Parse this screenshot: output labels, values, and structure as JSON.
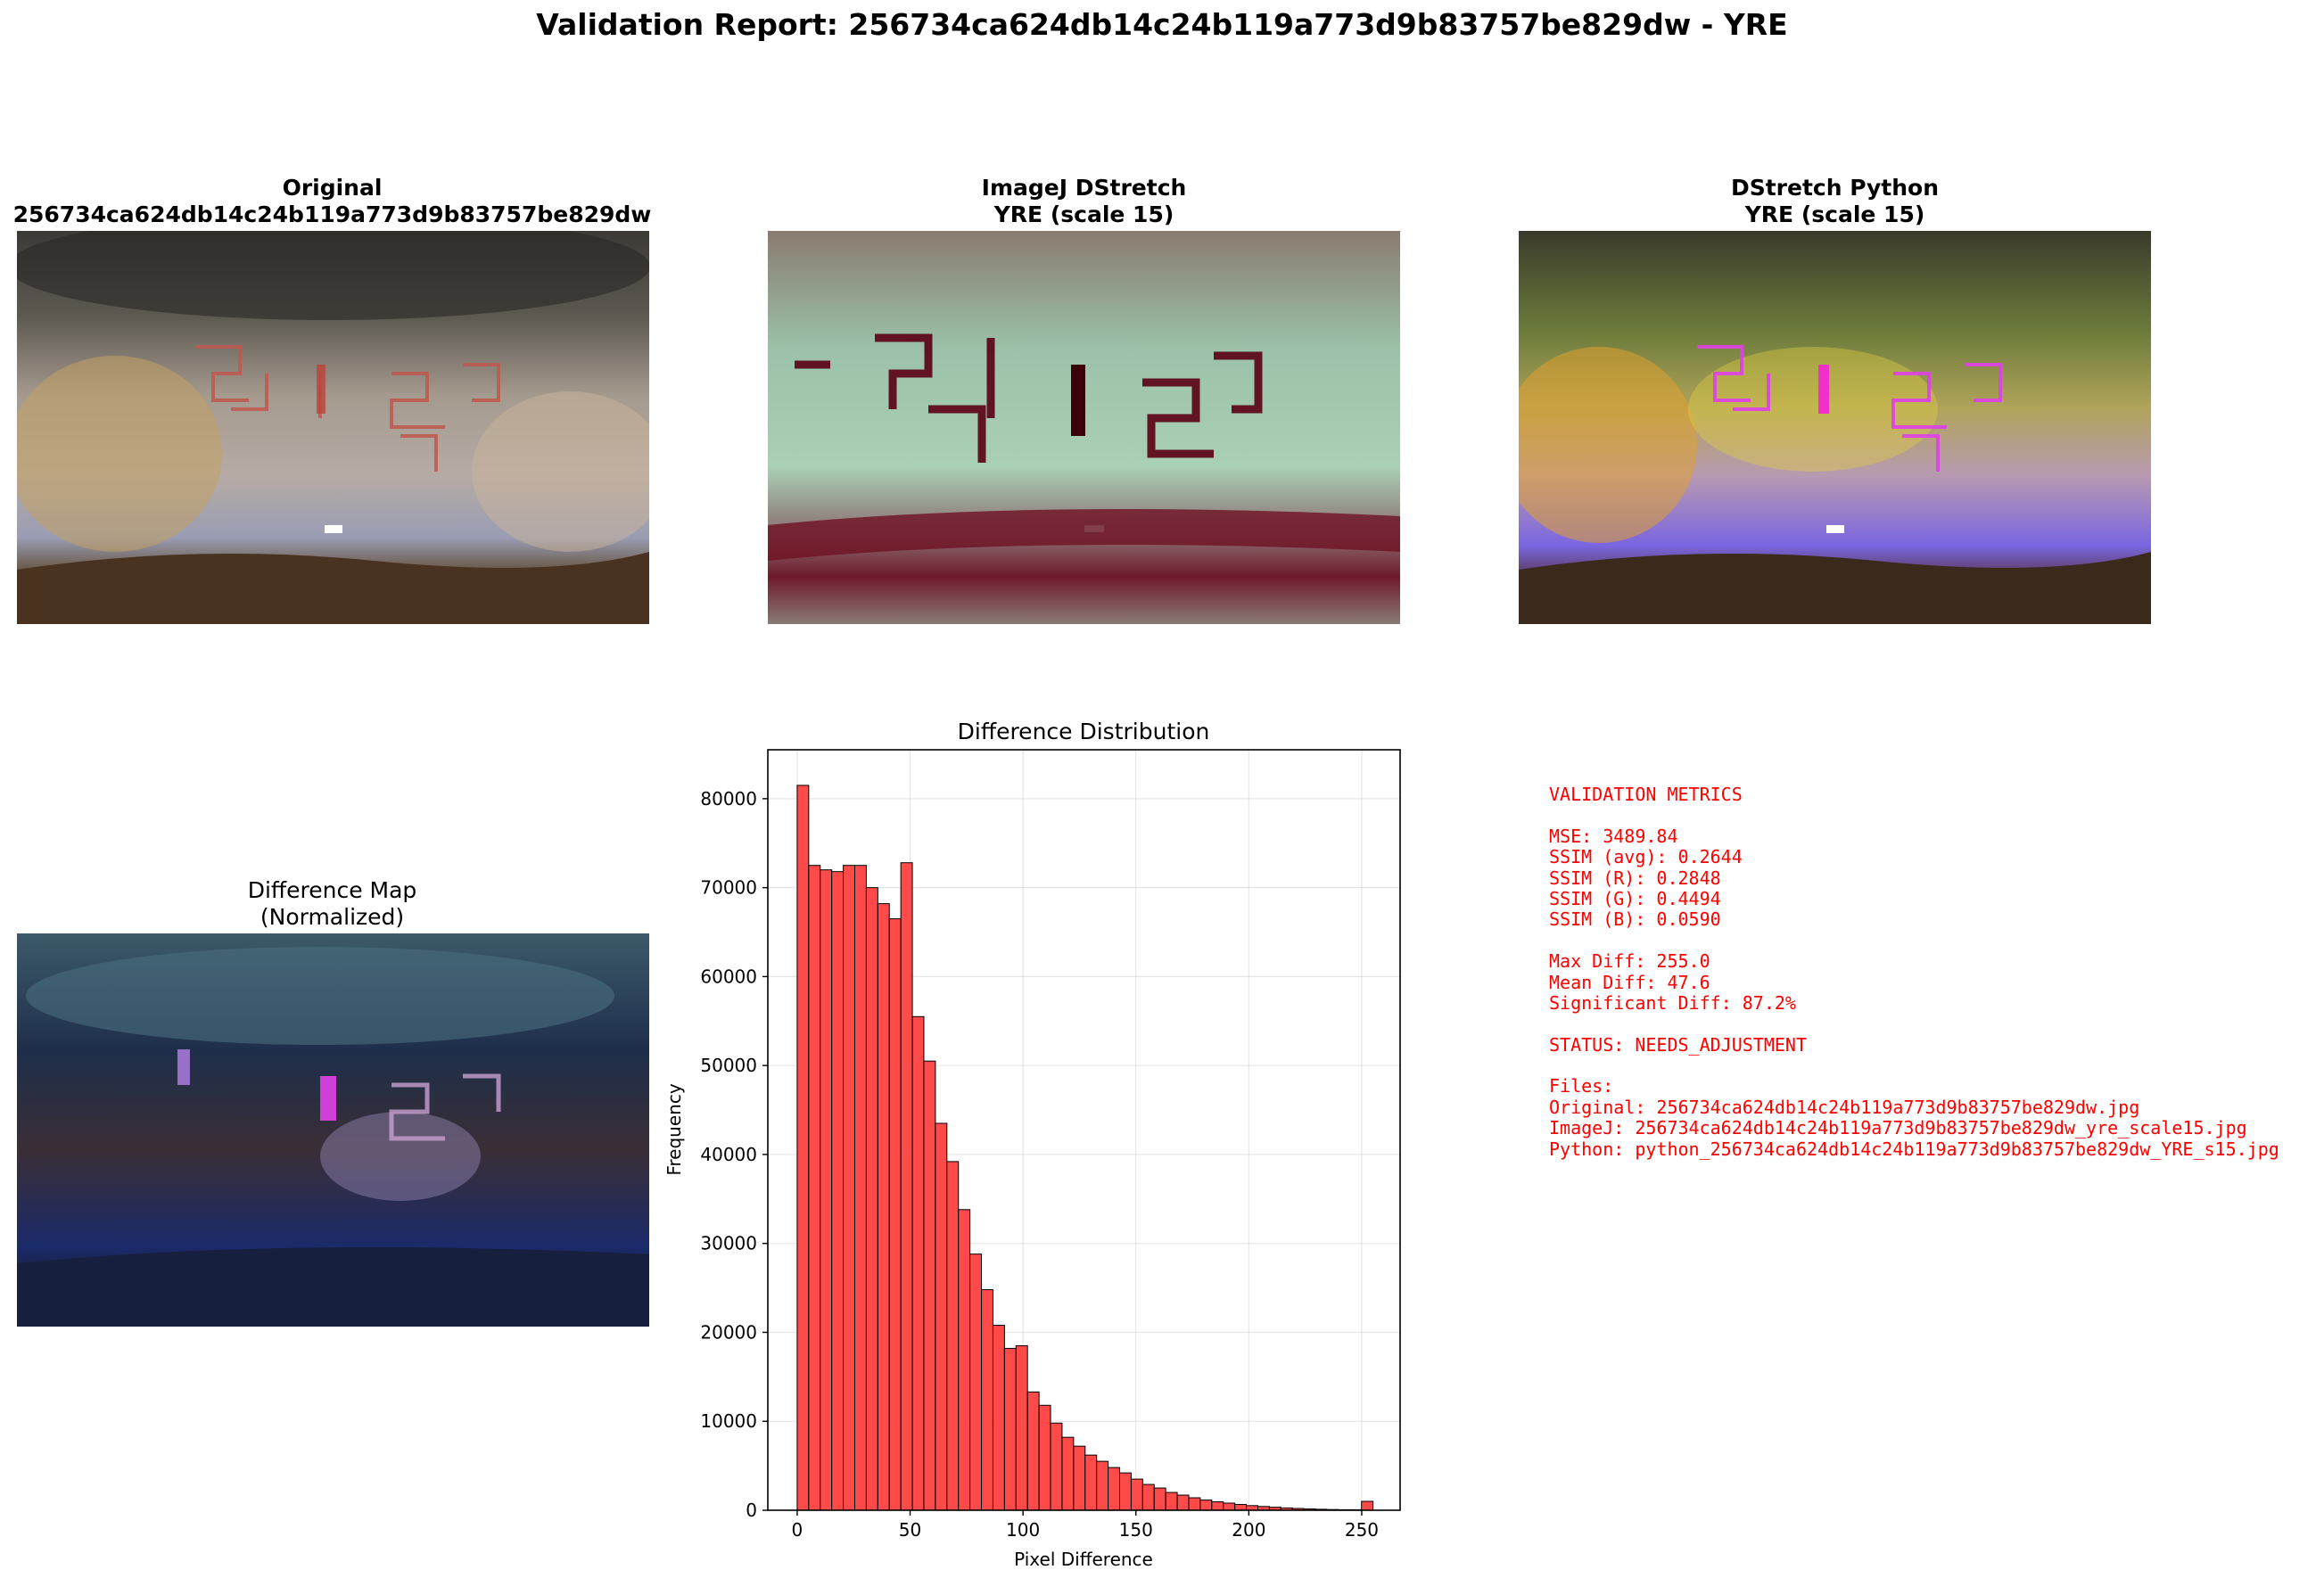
{
  "report": {
    "title": "Validation Report: 256734ca624db14c24b119a773d9b83757be829dw - YRE"
  },
  "panels": {
    "original": {
      "title_line1": "Original",
      "title_line2": "256734ca624db14c24b119a773d9b83757be829dw"
    },
    "imagej": {
      "title_line1": "ImageJ DStretch",
      "title_line2": "YRE (scale 15)"
    },
    "python": {
      "title_line1": "DStretch Python",
      "title_line2": "YRE (scale 15)"
    },
    "diffmap": {
      "title_line1": "Difference Map",
      "title_line2": "(Normalized)"
    }
  },
  "metrics": {
    "lines": [
      "VALIDATION METRICS",
      "",
      "MSE: 3489.84",
      "SSIM (avg): 0.2644",
      "SSIM (R): 0.2848",
      "SSIM (G): 0.4494",
      "SSIM (B): 0.0590",
      "",
      "Max Diff: 255.0",
      "Mean Diff: 47.6",
      "Significant Diff: 87.2%",
      "",
      "STATUS: NEEDS_ADJUSTMENT",
      "",
      "Files:",
      "Original: 256734ca624db14c24b119a773d9b83757be829dw.jpg",
      "ImageJ: 256734ca624db14c24b119a773d9b83757be829dw_yre_scale15.jpg",
      "Python: python_256734ca624db14c24b119a773d9b83757be829dw_YRE_s15.jpg"
    ],
    "color": "#ff0000"
  },
  "chart_data": {
    "type": "bar",
    "title": "Difference Distribution",
    "xlabel": "Pixel Difference",
    "ylabel": "Frequency",
    "bin_width": 5.1,
    "bin_start": 0,
    "values": [
      81500,
      72500,
      72000,
      71800,
      72500,
      72500,
      70000,
      68200,
      66500,
      72800,
      55500,
      50500,
      43500,
      39200,
      33800,
      28800,
      24800,
      20800,
      18200,
      18500,
      13300,
      11800,
      9800,
      8200,
      7200,
      6200,
      5500,
      4800,
      4200,
      3500,
      2900,
      2500,
      2000,
      1700,
      1400,
      1150,
      950,
      800,
      650,
      520,
      420,
      340,
      260,
      200,
      150,
      110,
      80,
      60,
      60,
      1000
    ],
    "xlim": [
      -13,
      267
    ],
    "ylim": [
      0,
      85500
    ],
    "xticks": [
      0,
      50,
      100,
      150,
      200,
      250
    ],
    "yticks": [
      0,
      10000,
      20000,
      30000,
      40000,
      50000,
      60000,
      70000,
      80000
    ],
    "bar_color": "#ff4040",
    "edge_color": "#000000",
    "grid": true
  }
}
